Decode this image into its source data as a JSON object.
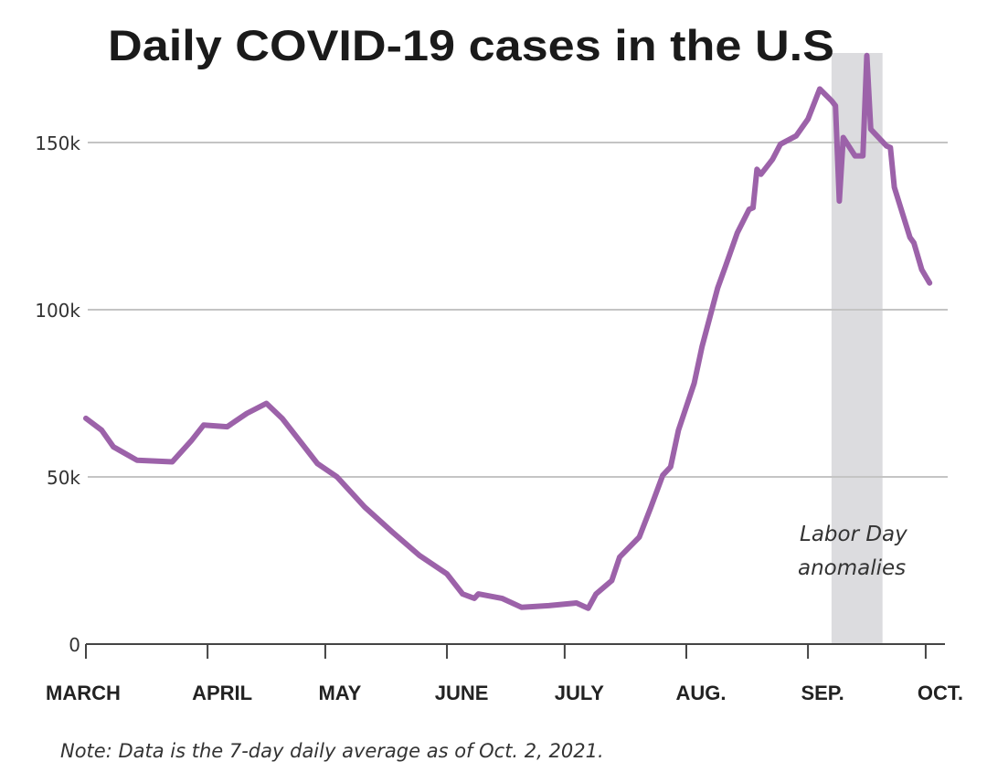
{
  "chart_data": {
    "type": "line",
    "title": "Daily COVID-19 cases in the U.S",
    "note": "Note: Data is the 7-day daily average as of Oct. 2, 2021.",
    "xlabel": "",
    "ylabel": "",
    "ylim": [
      0,
      150000
    ],
    "y_ticks": [
      {
        "value": 0,
        "label": "0"
      },
      {
        "value": 50000,
        "label": "50k"
      },
      {
        "value": 100000,
        "label": "100k"
      },
      {
        "value": 150000,
        "label": "150k"
      }
    ],
    "x_ticks": [
      {
        "date": "2021-03-01",
        "label": "MARCH"
      },
      {
        "date": "2021-04-01",
        "label": "APRIL"
      },
      {
        "date": "2021-05-01",
        "label": "MAY"
      },
      {
        "date": "2021-06-01",
        "label": "JUNE"
      },
      {
        "date": "2021-07-01",
        "label": "JULY"
      },
      {
        "date": "2021-08-01",
        "label": "AUG."
      },
      {
        "date": "2021-09-01",
        "label": "SEP."
      },
      {
        "date": "2021-10-01",
        "label": "OCT."
      }
    ],
    "grid": "horizontal",
    "line_color": "#9c62a9",
    "highlight": {
      "start": "2021-09-07",
      "end": "2021-09-20",
      "label_lines": [
        "Labor Day",
        "anomalies"
      ],
      "color": "#dcdcdf"
    },
    "series": [
      {
        "x": [
          "2021-03-01",
          "2021-03-05",
          "2021-03-08",
          "2021-03-14",
          "2021-03-23",
          "2021-03-28",
          "2021-03-31",
          "2021-04-06",
          "2021-04-11",
          "2021-04-16",
          "2021-04-20",
          "2021-04-25",
          "2021-04-29",
          "2021-05-04",
          "2021-05-11",
          "2021-05-18",
          "2021-05-25",
          "2021-06-01",
          "2021-06-05",
          "2021-06-08",
          "2021-06-09",
          "2021-06-15",
          "2021-06-20",
          "2021-06-27",
          "2021-07-04",
          "2021-07-07",
          "2021-07-09",
          "2021-07-13",
          "2021-07-15",
          "2021-07-20",
          "2021-07-23",
          "2021-07-26",
          "2021-07-28",
          "2021-07-30",
          "2021-08-03",
          "2021-08-05",
          "2021-08-09",
          "2021-08-11",
          "2021-08-14",
          "2021-08-17",
          "2021-08-18",
          "2021-08-19",
          "2021-08-20",
          "2021-08-23",
          "2021-08-25",
          "2021-08-29",
          "2021-09-01",
          "2021-09-04",
          "2021-09-07",
          "2021-09-08",
          "2021-09-09",
          "2021-09-10",
          "2021-09-13",
          "2021-09-15",
          "2021-09-16",
          "2021-09-17",
          "2021-09-21",
          "2021-09-22",
          "2021-09-23",
          "2021-09-27",
          "2021-09-28",
          "2021-09-30",
          "2021-10-02"
        ],
        "values": [
          67500,
          64000,
          59000,
          55000,
          54500,
          61000,
          65500,
          65000,
          69000,
          72000,
          67500,
          60000,
          54000,
          50000,
          41000,
          33600,
          26500,
          21000,
          15000,
          13700,
          15000,
          13700,
          11000,
          11500,
          12300,
          10700,
          15000,
          19000,
          26000,
          32000,
          41000,
          50500,
          53000,
          64000,
          78000,
          89000,
          106500,
          113000,
          123000,
          130000,
          130500,
          142000,
          140500,
          145000,
          149500,
          152000,
          157000,
          166000,
          162500,
          161000,
          132500,
          151500,
          146000,
          146000,
          176000,
          154000,
          149000,
          148500,
          136600,
          121600,
          120000,
          112000,
          108000
        ]
      }
    ]
  }
}
